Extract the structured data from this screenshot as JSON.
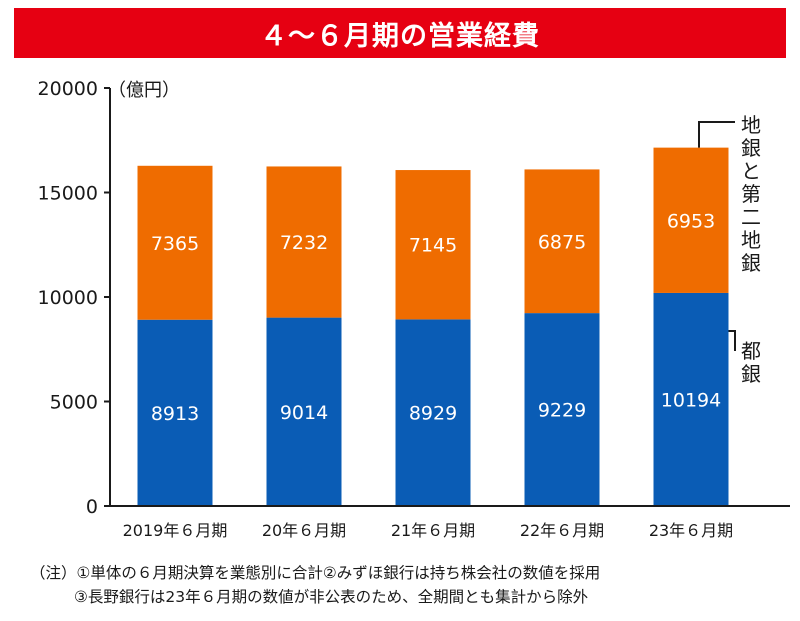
{
  "title": "４～６月期の営業経費",
  "chart_data": {
    "type": "bar",
    "stacked": true,
    "unit_label": "（億円）",
    "categories": [
      "2019年６月期",
      "20年６月期",
      "21年６月期",
      "22年６月期",
      "23年６月期"
    ],
    "series": [
      {
        "name": "都銀",
        "values": [
          8913,
          9014,
          8929,
          9229,
          10194
        ],
        "color": "#0a5cb5"
      },
      {
        "name": "地銀と第二地銀",
        "values": [
          7365,
          7232,
          7145,
          6875,
          6953
        ],
        "color": "#ef6c00"
      }
    ],
    "yticks": [
      0,
      5000,
      10000,
      15000,
      20000
    ],
    "ylim": [
      0,
      20000
    ],
    "grid": false,
    "legend_position": "right"
  },
  "notes": [
    "（注）①単体の６月期決算を業態別に合計②みずほ銀行は持ち株会社の数値を採用",
    "③長野銀行は23年６月期の数値が非公表のため、全期間とも集計から除外"
  ]
}
